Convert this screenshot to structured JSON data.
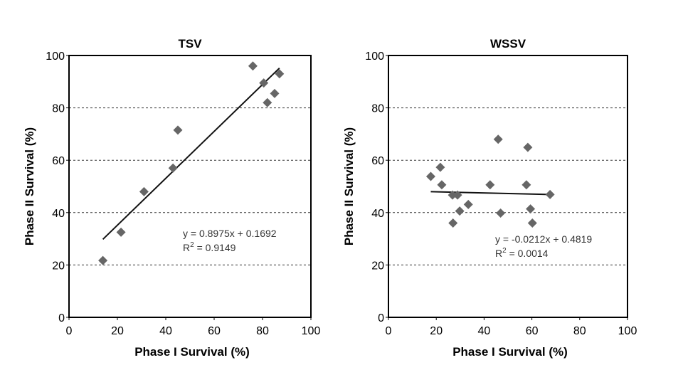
{
  "chart_data": [
    {
      "type": "scatter",
      "title": "TSV",
      "xlabel": "Phase I Survival (%)",
      "ylabel": "Phase II Survival (%)",
      "xlim": [
        0,
        100
      ],
      "ylim": [
        0,
        100
      ],
      "xticks": [
        "0",
        "20",
        "40",
        "60",
        "80",
        "100"
      ],
      "yticks": [
        "0",
        "20",
        "40",
        "60",
        "80",
        "100"
      ],
      "grid": "horizontal dashed",
      "marker_color": "#666666",
      "points": [
        {
          "x": 14,
          "y": 21.7
        },
        {
          "x": 21.5,
          "y": 32.5
        },
        {
          "x": 31,
          "y": 48
        },
        {
          "x": 43,
          "y": 57
        },
        {
          "x": 45,
          "y": 71.5
        },
        {
          "x": 76,
          "y": 96
        },
        {
          "x": 80.5,
          "y": 89.5
        },
        {
          "x": 82,
          "y": 82
        },
        {
          "x": 85,
          "y": 85.5
        },
        {
          "x": 87,
          "y": 93
        }
      ],
      "trendline": {
        "x": [
          14,
          87
        ],
        "y": [
          29.8,
          95.2
        ]
      },
      "equation": "y = 0.8975x + 0.1692",
      "r2_label": "R",
      "r2_sup": "2",
      "r2_value": " = 0.9149"
    },
    {
      "type": "scatter",
      "title": "WSSV",
      "xlabel": "Phase I Survival (%)",
      "ylabel": "Phase II Survival (%)",
      "xlim": [
        0,
        100
      ],
      "ylim": [
        0,
        100
      ],
      "xticks": [
        "0",
        "20",
        "40",
        "60",
        "80",
        "100"
      ],
      "yticks": [
        "0",
        "20",
        "40",
        "60",
        "80",
        "100"
      ],
      "grid": "horizontal dashed",
      "marker_color": "#666666",
      "points": [
        {
          "x": 17.7,
          "y": 53.8
        },
        {
          "x": 21.7,
          "y": 57.3
        },
        {
          "x": 22.3,
          "y": 50.6
        },
        {
          "x": 26.8,
          "y": 46.7
        },
        {
          "x": 28.9,
          "y": 46.7
        },
        {
          "x": 29.8,
          "y": 40.6
        },
        {
          "x": 27,
          "y": 36
        },
        {
          "x": 33.4,
          "y": 43.1
        },
        {
          "x": 42.5,
          "y": 50.6
        },
        {
          "x": 45.9,
          "y": 68
        },
        {
          "x": 46.9,
          "y": 39.8
        },
        {
          "x": 57.7,
          "y": 50.6
        },
        {
          "x": 58.3,
          "y": 64.9
        },
        {
          "x": 59.4,
          "y": 41.4
        },
        {
          "x": 60.2,
          "y": 36
        },
        {
          "x": 67.6,
          "y": 46.9
        }
      ],
      "trendline": {
        "x": [
          17.7,
          67.6
        ],
        "y": [
          48.0,
          46.9
        ]
      },
      "equation": "y = -0.0212x + 0.4819",
      "r2_label": "R",
      "r2_sup": "2",
      "r2_value": " = 0.0014"
    }
  ]
}
